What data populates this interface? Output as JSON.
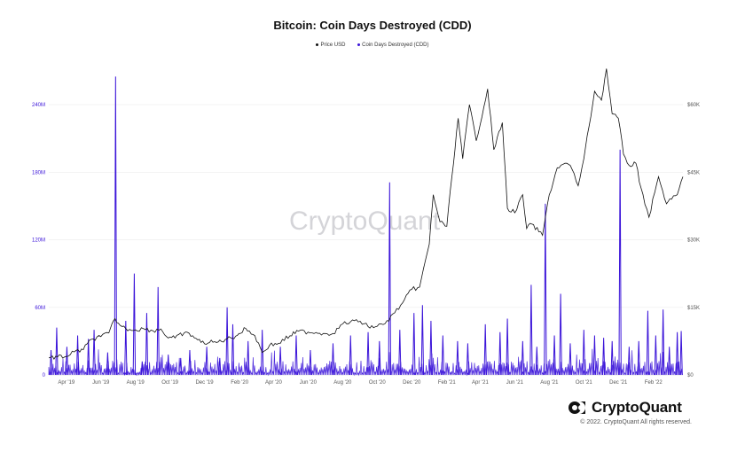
{
  "chart_data": {
    "type": "line",
    "title": "Bitcoin: Coin Days Destroyed (CDD)",
    "legend": {
      "placement": "top-center",
      "items": [
        "Price USD",
        "Coin Days Destroyed (CDD)"
      ]
    },
    "watermark": "CryptoQuant",
    "grid": true,
    "x_tick_labels": [
      "Apr '19",
      "Jun '19",
      "Aug '19",
      "Oct '19",
      "Dec '19",
      "Feb '20",
      "Apr '20",
      "Jun '20",
      "Aug '20",
      "Oct '20",
      "Dec '20",
      "Feb '21",
      "Apr '21",
      "Jun '21",
      "Aug '21",
      "Oct '21",
      "Dec '21",
      "Feb '22"
    ],
    "x_range": [
      "2019-03-01",
      "2022-03-25"
    ],
    "y_left": {
      "ticks": [
        "0",
        "60M",
        "120M",
        "180M",
        "240M"
      ],
      "range": [
        0,
        270000000
      ],
      "color": "#3b14d9"
    },
    "y_right": {
      "ticks": [
        "$0",
        "$15K",
        "$30K",
        "$45K",
        "$60K"
      ],
      "range": [
        0,
        67500
      ],
      "color": "#555555"
    },
    "series": [
      {
        "name": "Price USD",
        "axis": "right",
        "color": "#111111",
        "x": [
          "2019-03-01",
          "2019-04-01",
          "2019-04-15",
          "2019-05-01",
          "2019-05-15",
          "2019-06-01",
          "2019-06-15",
          "2019-06-26",
          "2019-07-05",
          "2019-07-15",
          "2019-08-01",
          "2019-08-15",
          "2019-09-01",
          "2019-09-15",
          "2019-09-25",
          "2019-10-10",
          "2019-10-26",
          "2019-11-10",
          "2019-11-25",
          "2019-12-10",
          "2019-12-25",
          "2020-01-10",
          "2020-01-25",
          "2020-02-12",
          "2020-02-28",
          "2020-03-12",
          "2020-03-25",
          "2020-04-10",
          "2020-04-30",
          "2020-05-15",
          "2020-06-01",
          "2020-06-15",
          "2020-07-01",
          "2020-07-15",
          "2020-08-01",
          "2020-08-15",
          "2020-09-01",
          "2020-09-15",
          "2020-10-01",
          "2020-10-15",
          "2020-11-01",
          "2020-11-15",
          "2020-12-01",
          "2020-12-15",
          "2021-01-01",
          "2021-01-08",
          "2021-01-20",
          "2021-02-01",
          "2021-02-10",
          "2021-02-21",
          "2021-03-01",
          "2021-03-13",
          "2021-03-25",
          "2021-04-14",
          "2021-04-25",
          "2021-05-10",
          "2021-05-19",
          "2021-06-01",
          "2021-06-15",
          "2021-06-22",
          "2021-07-01",
          "2021-07-20",
          "2021-08-01",
          "2021-08-15",
          "2021-09-01",
          "2021-09-07",
          "2021-09-21",
          "2021-10-01",
          "2021-10-10",
          "2021-10-20",
          "2021-11-01",
          "2021-11-10",
          "2021-11-20",
          "2021-12-01",
          "2021-12-10",
          "2021-12-20",
          "2022-01-01",
          "2022-01-10",
          "2022-01-24",
          "2022-02-10",
          "2022-02-24",
          "2022-03-05",
          "2022-03-15",
          "2022-03-25"
        ],
        "values": [
          3800,
          4100,
          5100,
          5600,
          7900,
          8500,
          9300,
          12500,
          11000,
          10300,
          10000,
          10300,
          9800,
          10200,
          8500,
          8200,
          9300,
          8700,
          7200,
          7200,
          7300,
          8000,
          8600,
          10300,
          8700,
          5000,
          6600,
          7000,
          8700,
          9700,
          9500,
          9400,
          9200,
          9200,
          11300,
          11800,
          11900,
          10700,
          10800,
          11400,
          13800,
          16000,
          19000,
          19500,
          29000,
          40000,
          34000,
          33000,
          44000,
          57000,
          48000,
          60000,
          52000,
          63500,
          50000,
          56000,
          37000,
          36000,
          40000,
          32500,
          33500,
          31000,
          40000,
          46000,
          47000,
          46500,
          42000,
          48000,
          55000,
          63000,
          61000,
          68000,
          58000,
          57000,
          49000,
          46500,
          47000,
          41500,
          35000,
          44000,
          38000,
          39000,
          40000,
          44000
        ]
      },
      {
        "name": "Coin Days Destroyed (CDD)",
        "axis": "left",
        "color": "#3b14d9",
        "x": [
          "2019-03-05",
          "2019-03-15",
          "2019-04-02",
          "2019-04-21",
          "2019-05-10",
          "2019-05-20",
          "2019-06-13",
          "2019-06-27",
          "2019-07-15",
          "2019-07-30",
          "2019-08-13",
          "2019-08-21",
          "2019-09-10",
          "2019-09-28",
          "2019-10-20",
          "2019-11-05",
          "2019-12-05",
          "2019-12-28",
          "2020-01-10",
          "2020-01-20",
          "2020-02-16",
          "2020-03-12",
          "2020-04-13",
          "2020-05-11",
          "2020-06-05",
          "2020-07-15",
          "2020-08-15",
          "2020-09-15",
          "2020-10-05",
          "2020-10-23",
          "2020-11-10",
          "2020-12-05",
          "2020-12-20",
          "2021-01-04",
          "2021-01-25",
          "2021-02-20",
          "2021-03-10",
          "2021-04-10",
          "2021-05-06",
          "2021-05-19",
          "2021-06-15",
          "2021-06-30",
          "2021-07-10",
          "2021-07-25",
          "2021-08-10",
          "2021-08-21",
          "2021-09-07",
          "2021-10-01",
          "2021-10-20",
          "2021-11-05",
          "2021-11-20",
          "2021-12-04",
          "2021-12-20",
          "2022-01-06",
          "2022-01-22",
          "2022-02-05",
          "2022-02-18",
          "2022-03-01",
          "2022-03-15",
          "2022-03-22"
        ],
        "values": [
          22000000,
          42000000,
          25000000,
          35000000,
          32000000,
          40000000,
          20000000,
          265000000,
          48000000,
          90000000,
          12000000,
          55000000,
          78000000,
          18000000,
          15000000,
          22000000,
          25000000,
          15000000,
          60000000,
          45000000,
          30000000,
          40000000,
          25000000,
          35000000,
          22000000,
          28000000,
          35000000,
          38000000,
          30000000,
          171000000,
          40000000,
          55000000,
          62000000,
          48000000,
          35000000,
          30000000,
          28000000,
          45000000,
          38000000,
          50000000,
          30000000,
          80000000,
          25000000,
          152000000,
          35000000,
          72000000,
          28000000,
          40000000,
          35000000,
          33000000,
          30000000,
          200000000,
          25000000,
          30000000,
          57000000,
          35000000,
          58000000,
          25000000,
          38000000,
          39000000
        ]
      }
    ]
  },
  "branding": {
    "name": "CryptoQuant",
    "logo_icon": "cryptoquant-logo-icon",
    "copyright": "© 2022. CryptoQuant All rights reserved."
  },
  "colors": {
    "cdd": "#3b14d9",
    "price": "#111111",
    "grid": "#ececec"
  }
}
